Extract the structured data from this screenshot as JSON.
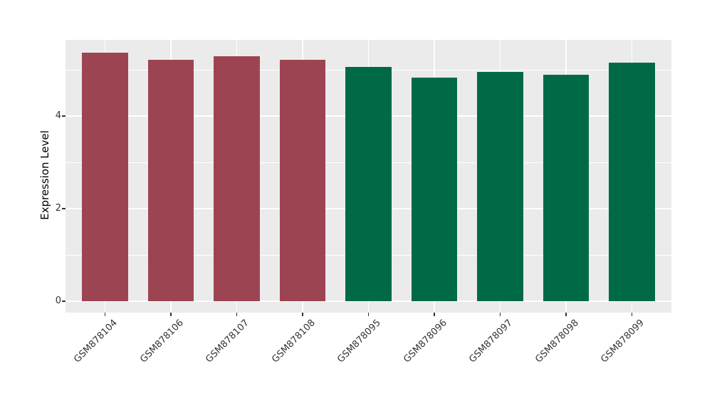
{
  "chart_data": {
    "type": "bar",
    "title": "",
    "xlabel": "",
    "ylabel": "Expression Level",
    "categories": [
      "GSM878104",
      "GSM878106",
      "GSM878107",
      "GSM878108",
      "GSM878095",
      "GSM878096",
      "GSM878097",
      "GSM878098",
      "GSM878099"
    ],
    "values": [
      5.37,
      5.21,
      5.29,
      5.22,
      5.06,
      4.83,
      4.96,
      4.89,
      5.15
    ],
    "bar_colors": [
      "#9D4452",
      "#9D4452",
      "#9D4452",
      "#9D4452",
      "#006A47",
      "#006A47",
      "#006A47",
      "#006A47",
      "#006A47"
    ],
    "y_ticks": [
      0,
      2,
      4
    ],
    "y_minor_gridlines": [
      1,
      3,
      5
    ],
    "ylim": [
      -0.23,
      5.63
    ],
    "bar_width_ratio": 0.7,
    "x_tick_rotation_deg": 45,
    "grid": "on",
    "legend_position": "none",
    "panel_background": "#EBEBEB",
    "gridline_color": "#FFFFFF",
    "axis_text_color": "#333333",
    "axis_title_color": "#000000"
  }
}
